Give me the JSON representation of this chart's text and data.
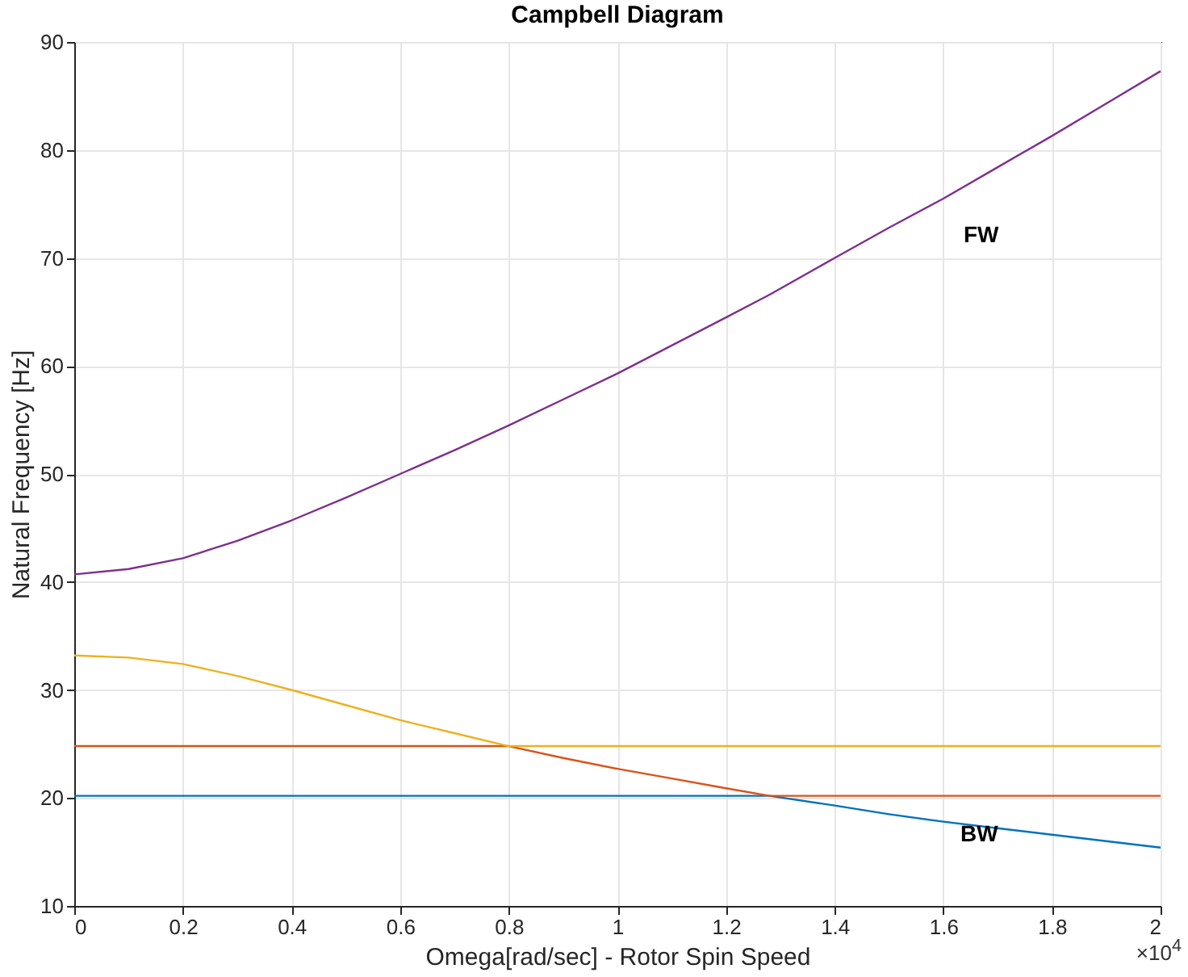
{
  "chart_data": {
    "type": "line",
    "title": "Campbell Diagram",
    "xlabel": "Omega[rad/sec] - Rotor Spin Speed",
    "ylabel": "Natural Frequency [Hz]",
    "xlim": [
      0,
      2
    ],
    "ylim": [
      10,
      90
    ],
    "xticks": [
      0,
      0.2,
      0.4,
      0.6,
      0.8,
      1,
      1.2,
      1.4,
      1.6,
      1.8,
      2
    ],
    "yticks": [
      10,
      20,
      30,
      40,
      50,
      60,
      70,
      80,
      90
    ],
    "grid": true,
    "legend": false,
    "x": [
      0,
      0.1,
      0.2,
      0.3,
      0.4,
      0.5,
      0.6,
      0.7,
      0.8,
      0.9,
      1,
      1.1,
      1.2,
      1.28,
      1.4,
      1.5,
      1.6,
      1.7,
      1.8,
      1.9,
      2
    ],
    "series": [
      {
        "color": "#0072bd",
        "values": [
          20.2,
          20.2,
          20.2,
          20.2,
          20.2,
          20.2,
          20.2,
          20.2,
          20.2,
          20.2,
          20.2,
          20.2,
          20.2,
          20.2,
          19.3,
          18.5,
          17.8,
          17.2,
          16.6,
          16,
          15.4
        ]
      },
      {
        "color": "#d95319",
        "values": [
          24.8,
          24.8,
          24.8,
          24.8,
          24.8,
          24.8,
          24.8,
          24.8,
          24.8,
          23.7,
          22.7,
          21.8,
          20.9,
          20.2,
          20.2,
          20.2,
          20.2,
          20.2,
          20.2,
          20.2,
          20.2
        ]
      },
      {
        "color": "#edb120",
        "values": [
          33.2,
          33,
          32.4,
          31.3,
          30,
          28.6,
          27.2,
          26,
          24.8,
          24.8,
          24.8,
          24.8,
          24.8,
          24.8,
          24.8,
          24.8,
          24.8,
          24.8,
          24.8,
          24.8,
          24.8
        ]
      },
      {
        "color": "#7e2f8e",
        "values": [
          40.7,
          41.2,
          42.2,
          43.8,
          45.7,
          47.8,
          50,
          52.2,
          54.5,
          56.9,
          59.3,
          61.9,
          64.5,
          66.6,
          70,
          72.8,
          75.5,
          78.4,
          81.3,
          84.3,
          87.3
        ]
      }
    ],
    "annotations": [
      "FW",
      "BW",
      "×10$^{4}$"
    ]
  }
}
